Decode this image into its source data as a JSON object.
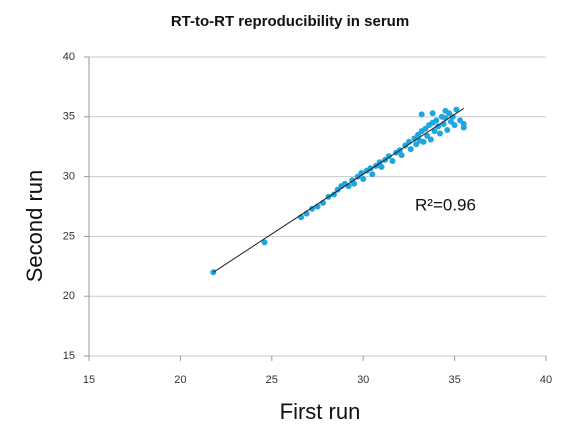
{
  "chart_data": {
    "type": "scatter",
    "title": "RT-to-RT reproducibility in serum",
    "x_label": "First run",
    "y_label": "Second run",
    "annotation": "R²=0.96",
    "color": "#1fa6df",
    "xlim": [
      15,
      40
    ],
    "xticks": [
      15,
      20,
      25,
      30,
      35,
      40
    ],
    "ylim": [
      15,
      40
    ],
    "yticks": [
      15,
      20,
      25,
      30,
      35,
      40
    ],
    "grid": true,
    "trendline": {
      "x": [
        21.8,
        35.5
      ],
      "y": [
        22.0,
        35.7
      ]
    },
    "x": [
      21.8,
      24.6,
      26.6,
      26.9,
      27.2,
      27.5,
      27.8,
      28.1,
      28.4,
      28.6,
      28.8,
      29.0,
      29.2,
      29.4,
      29.5,
      29.7,
      29.9,
      30.0,
      30.2,
      30.4,
      30.5,
      30.7,
      30.9,
      31.0,
      31.2,
      31.4,
      31.6,
      31.8,
      32.0,
      32.1,
      32.3,
      32.5,
      32.6,
      32.8,
      32.9,
      33.0,
      33.1,
      33.2,
      33.3,
      33.4,
      33.5,
      33.6,
      33.7,
      33.8,
      33.9,
      34.0,
      34.1,
      34.2,
      34.3,
      34.4,
      34.5,
      34.6,
      34.7,
      34.8,
      34.9,
      35.0,
      35.1,
      35.3,
      35.5,
      35.5,
      33.2,
      33.8,
      34.5
    ],
    "values": [
      22.0,
      24.5,
      26.6,
      26.9,
      27.3,
      27.5,
      27.8,
      28.3,
      28.5,
      28.9,
      29.2,
      29.4,
      29.2,
      29.7,
      29.4,
      30.0,
      30.3,
      29.8,
      30.5,
      30.7,
      30.2,
      30.9,
      31.2,
      30.8,
      31.4,
      31.7,
      31.3,
      32.0,
      32.2,
      31.8,
      32.6,
      32.9,
      32.3,
      33.2,
      32.7,
      33.5,
      33.0,
      33.8,
      32.9,
      34.0,
      33.4,
      34.3,
      33.1,
      34.5,
      33.8,
      34.7,
      34.2,
      33.6,
      35.0,
      34.4,
      34.9,
      33.9,
      35.3,
      34.6,
      35.0,
      34.3,
      35.6,
      34.7,
      34.1,
      34.4,
      35.2,
      35.3,
      35.5
    ]
  }
}
